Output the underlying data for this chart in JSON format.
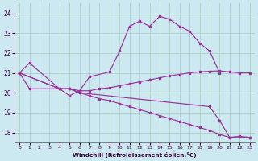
{
  "xlabel": "Windchill (Refroidissement éolien,°C)",
  "bg_color": "#cce8f0",
  "grid_color": "#aaccbb",
  "line_color": "#993399",
  "ylim": [
    17.5,
    24.5
  ],
  "yticks": [
    18,
    19,
    20,
    21,
    22,
    23,
    24
  ],
  "xticks": [
    0,
    1,
    2,
    3,
    4,
    5,
    6,
    7,
    8,
    9,
    10,
    11,
    12,
    13,
    14,
    15,
    16,
    17,
    18,
    19,
    20,
    21,
    22,
    23
  ],
  "line1_x": [
    0,
    1,
    4,
    5,
    6,
    7,
    9,
    10,
    11,
    12,
    13,
    14,
    15,
    16,
    17,
    18,
    19,
    20
  ],
  "line1_y": [
    21.0,
    21.5,
    20.2,
    19.85,
    20.1,
    20.8,
    21.05,
    22.1,
    23.35,
    23.6,
    23.35,
    23.85,
    23.7,
    23.35,
    23.1,
    22.5,
    22.1,
    21.0
  ],
  "line2_x": [
    0,
    1,
    4,
    5,
    6,
    7,
    8,
    9,
    10,
    11,
    12,
    13,
    14,
    15,
    16,
    17,
    18,
    19,
    20,
    21,
    22,
    23
  ],
  "line2_y": [
    21.0,
    20.2,
    20.2,
    20.2,
    20.1,
    20.1,
    20.2,
    20.25,
    20.35,
    20.45,
    20.55,
    20.65,
    20.75,
    20.85,
    20.92,
    21.0,
    21.05,
    21.08,
    21.1,
    21.05,
    21.0,
    21.0
  ],
  "line3_x": [
    0,
    4,
    5,
    6,
    7,
    8,
    9,
    10,
    11,
    12,
    13,
    14,
    15,
    16,
    17,
    18,
    19,
    20,
    21,
    22,
    23
  ],
  "line3_y": [
    21.0,
    20.2,
    20.2,
    20.0,
    19.85,
    19.7,
    19.6,
    19.45,
    19.3,
    19.15,
    19.0,
    18.85,
    18.7,
    18.55,
    18.4,
    18.25,
    18.1,
    17.9,
    17.75,
    17.78,
    17.75
  ],
  "line4_x": [
    0,
    4,
    5,
    6,
    19,
    20,
    21,
    22,
    23
  ],
  "line4_y": [
    21.0,
    20.2,
    20.2,
    20.0,
    19.3,
    18.6,
    17.75,
    17.8,
    17.75
  ]
}
